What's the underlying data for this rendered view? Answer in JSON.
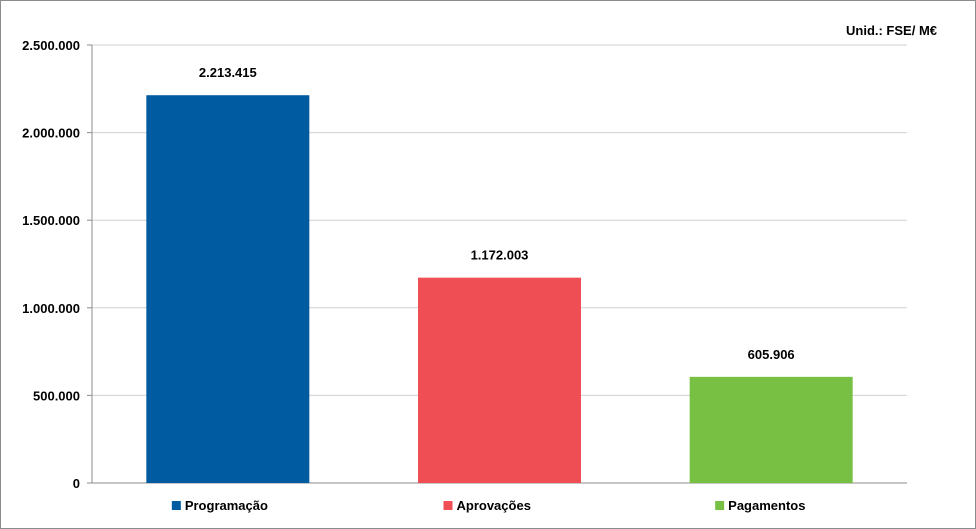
{
  "chart_data": {
    "type": "bar",
    "unit_label": "Unid.:  FSE/ M€",
    "categories": [
      "Programação",
      "Aprovações",
      "Pagamentos"
    ],
    "values": [
      2213415,
      1172003,
      605906
    ],
    "data_labels": [
      "2.213.415",
      "1.172.003",
      "605.906"
    ],
    "colors": [
      "#005ba1",
      "#f04e55",
      "#77c043"
    ],
    "ylim": [
      0,
      2500000
    ],
    "yticks": [
      0,
      500000,
      1000000,
      1500000,
      2000000,
      2500000
    ],
    "ytick_labels": [
      "0",
      "500.000",
      "1.000.000",
      "1.500.000",
      "2.000.000",
      "2.500.000"
    ],
    "grid": true,
    "legend": "bottom",
    "title": "",
    "xlabel": "",
    "ylabel": ""
  }
}
